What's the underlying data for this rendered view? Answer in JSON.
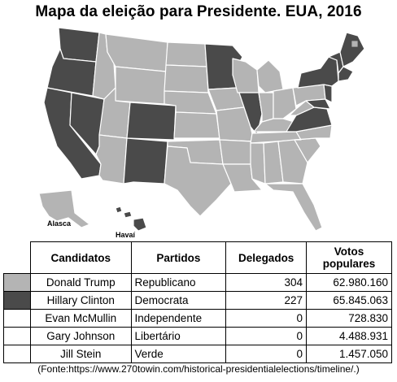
{
  "title": "Mapa da eleição para Presidente. EUA, 2016",
  "map": {
    "label_alaska": "Alasca",
    "label_hawaii": "Havaí",
    "colors": {
      "republican": "#b4b4b4",
      "democrat": "#4a4a4a",
      "border": "#ffffff"
    }
  },
  "table": {
    "headers": {
      "candidates": "Candidatos",
      "parties": "Partidos",
      "delegates": "Delegados",
      "votes": "Votos populares"
    },
    "rows": [
      {
        "candidate": "Donald Trump",
        "party": "Republicano",
        "delegates": "304",
        "votes": "62.980.160",
        "swatch": "#b4b4b4"
      },
      {
        "candidate": "Hillary Clinton",
        "party": "Democrata",
        "delegates": "227",
        "votes": "65.845.063",
        "swatch": "#4a4a4a"
      },
      {
        "candidate": "Evan McMullin",
        "party": "Independente",
        "delegates": "0",
        "votes": "728.830",
        "swatch": "#ffffff"
      },
      {
        "candidate": "Gary Johnson",
        "party": "Libertário",
        "delegates": "0",
        "votes": "4.488.931",
        "swatch": "#ffffff"
      },
      {
        "candidate": "Jill Stein",
        "party": "Verde",
        "delegates": "0",
        "votes": "1.457.050",
        "swatch": "#ffffff"
      }
    ]
  },
  "source": "(Fonte:https://www.270towin.com/historical-presidentialelections/timeline/.)"
}
